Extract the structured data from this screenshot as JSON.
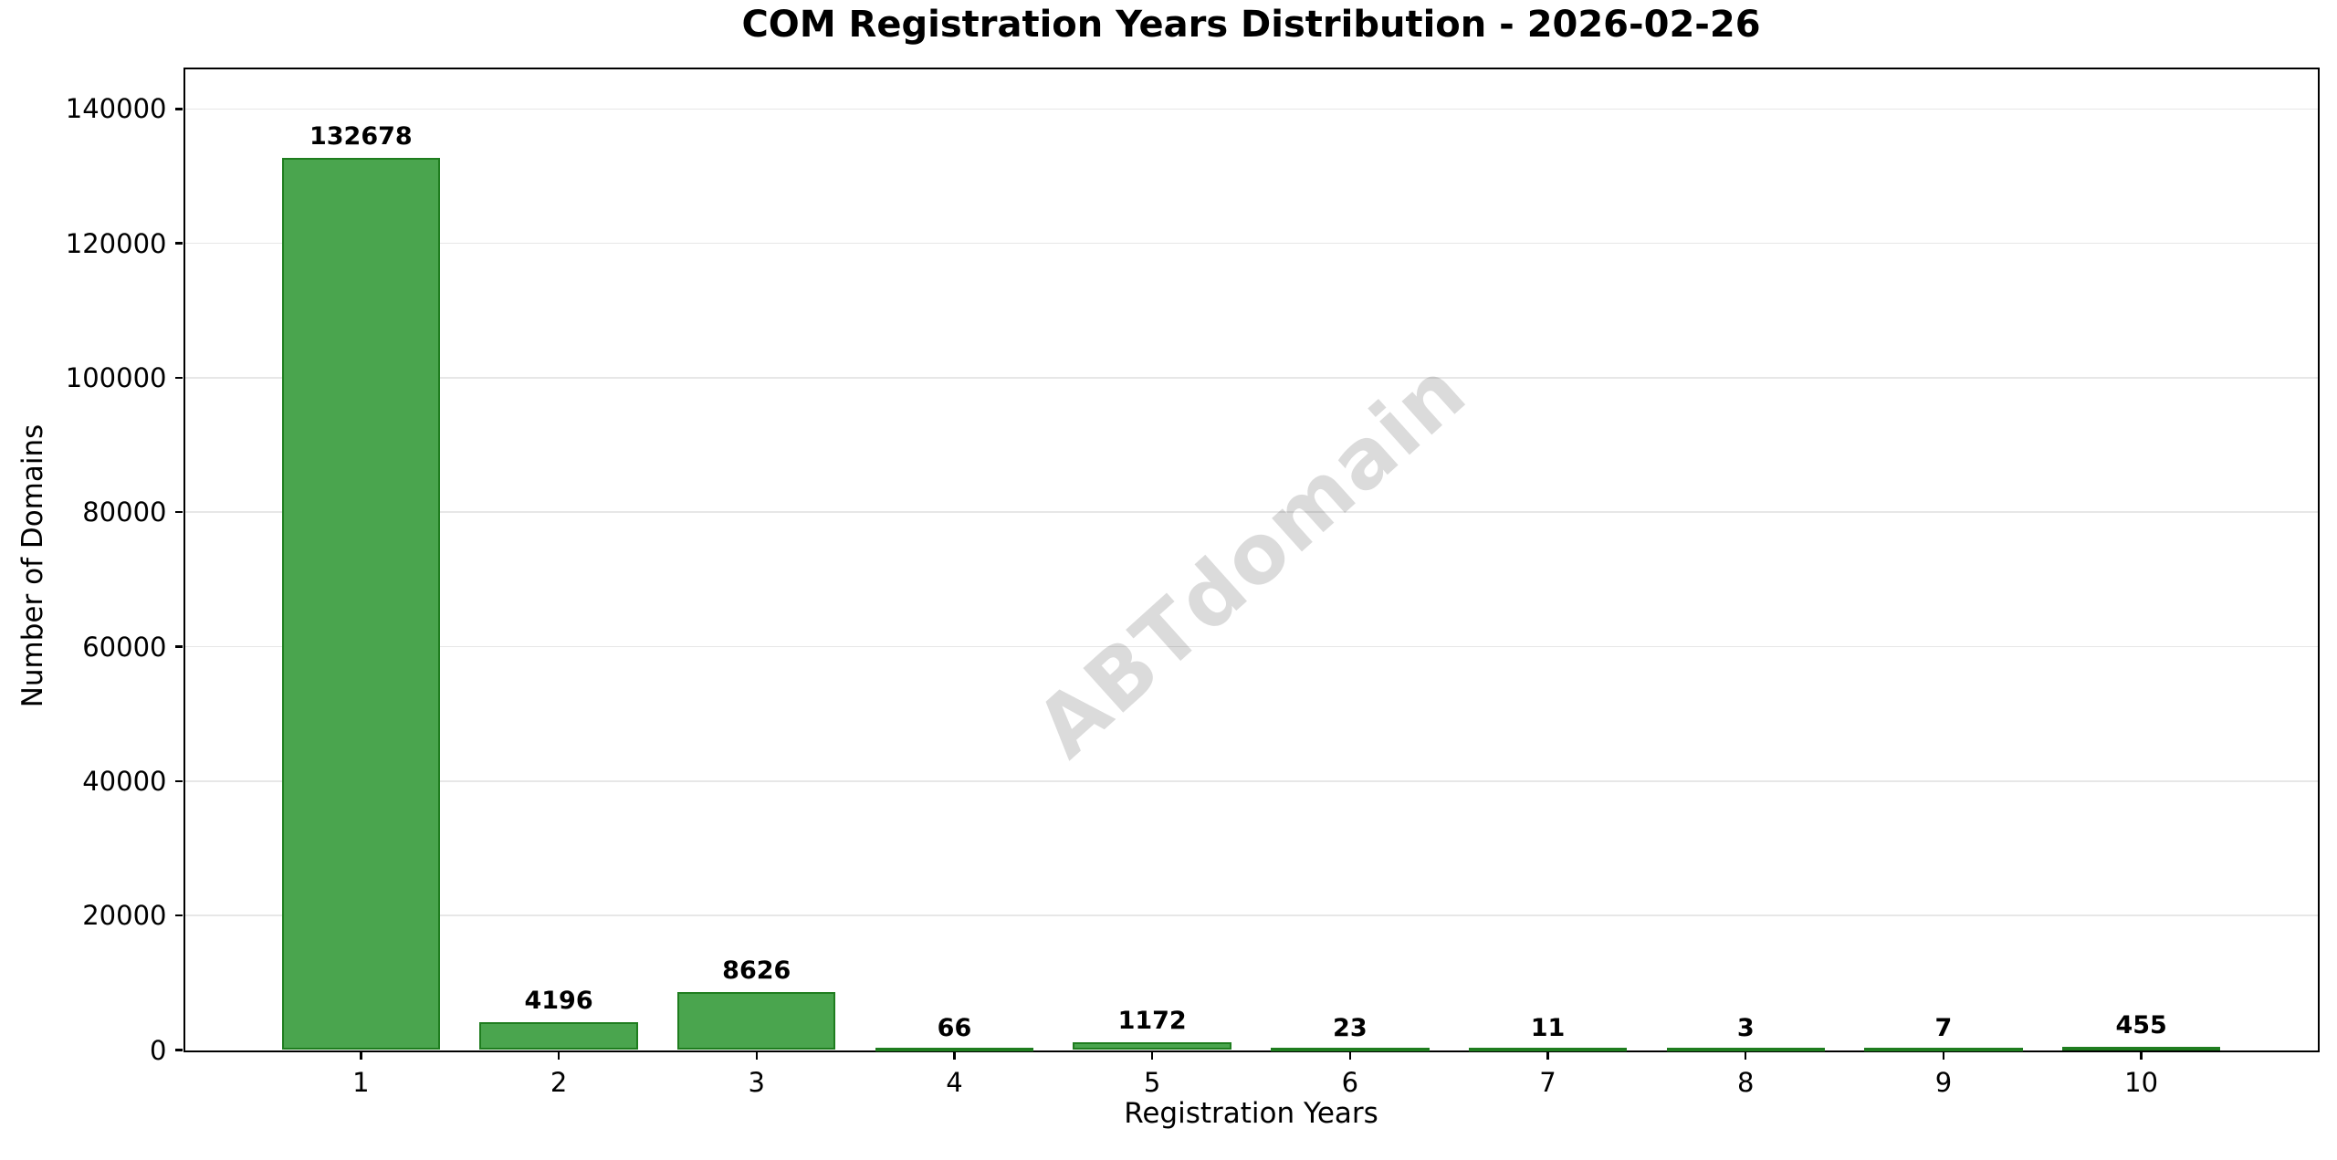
{
  "chart_data": {
    "type": "bar",
    "title": "COM Registration Years Distribution - 2026-02-26",
    "xlabel": "Registration Years",
    "ylabel": "Number of Domains",
    "categories": [
      "1",
      "2",
      "3",
      "4",
      "5",
      "6",
      "7",
      "8",
      "9",
      "10"
    ],
    "values": [
      132678,
      4196,
      8626,
      66,
      1172,
      23,
      11,
      3,
      7,
      455
    ],
    "bar_value_labels": [
      "132678",
      "4196",
      "8626",
      "66",
      "1172",
      "23",
      "11",
      "3",
      "7",
      "455"
    ],
    "yticks": [
      0,
      20000,
      40000,
      60000,
      80000,
      100000,
      120000,
      140000
    ],
    "ytick_labels": [
      "0",
      "20000",
      "40000",
      "60000",
      "80000",
      "100000",
      "120000",
      "140000"
    ],
    "ylim": [
      0,
      145946
    ],
    "xlim": [
      0.11,
      10.89
    ],
    "bar_width_units": 0.8,
    "grid": "horizontal",
    "legend": "none",
    "watermark": "ABTdomain",
    "colors": {
      "bar_fill": "#4aa54e",
      "bar_edge": "#1f7d1f",
      "gridline": "#e7e7e7",
      "spine": "#000000",
      "text": "#000000",
      "watermark": "rgba(0,0,0,0.14)",
      "background": "#ffffff"
    }
  }
}
